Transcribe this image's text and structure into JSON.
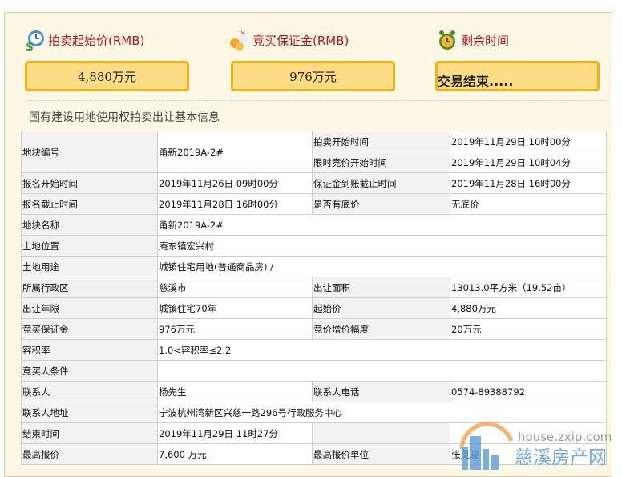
{
  "stats": [
    {
      "icon": "money-clock-icon",
      "label": "拍卖起始价(RMB)",
      "value": "4,880万元"
    },
    {
      "icon": "coins-bag-icon",
      "label": "竞买保证金(RMB)",
      "value": "976万元"
    },
    {
      "icon": "alarm-clock-icon",
      "label": "剩余时间",
      "value": "交易结束....."
    }
  ],
  "section_title": "国有建设用地使用权拍卖出让基本信息",
  "table": {
    "plot_no_label": "地块编号",
    "plot_no": "甬新2019A-2#",
    "auction_start_label": "拍卖开始时间",
    "auction_start": "2019年11月29日 10时00分",
    "timed_start_label": "限时竞价开始时间",
    "timed_start": "2019年11月29日 10时04分",
    "rows": [
      [
        "报名开始时间",
        "2019年11月26日 09时00分",
        "保证金到账截止时间",
        "2019年11月28日 16时00分"
      ],
      [
        "报名截止时间",
        "2019年11月28日 16时00分",
        "是否有底价",
        "无底价"
      ],
      [
        "地块名称",
        "甬新2019A-2#"
      ],
      [
        "土地位置",
        "庵东镇宏兴村"
      ],
      [
        "土地用途",
        "城镇住宅用地(普通商品房) /"
      ],
      [
        "所属行政区",
        "慈溪市",
        "出让面积",
        "13013.0平方米（19.52亩）"
      ],
      [
        "出让年限",
        "城镇住宅70年",
        "起始价",
        "4,880万元"
      ],
      [
        "竞买保证金",
        "976万元",
        "竞价增价幅度",
        "20万元"
      ],
      [
        "容积率",
        "1.0<容积率≤2.2"
      ],
      [
        "竞买人条件",
        ""
      ],
      [
        "联系人",
        "杨先生",
        "联系人电话",
        "0574-89388792"
      ],
      [
        "联系人地址",
        "宁波杭州湾新区兴慈一路296号行政服务中心"
      ],
      [
        "结束时间",
        "2019年11月29日 11时27分",
        "",
        ""
      ],
      [
        "最高报价",
        "7,600 万元",
        "最高报价单位",
        "张灵骏"
      ]
    ]
  },
  "watermark": {
    "url": "house.zxip.com",
    "name": "慈溪房产网"
  },
  "colors": {
    "accent_red": "#b3141c",
    "box_fill": "#fddc86",
    "box_border": "#f0b21b",
    "panel_bg": "#fdf8e6"
  }
}
